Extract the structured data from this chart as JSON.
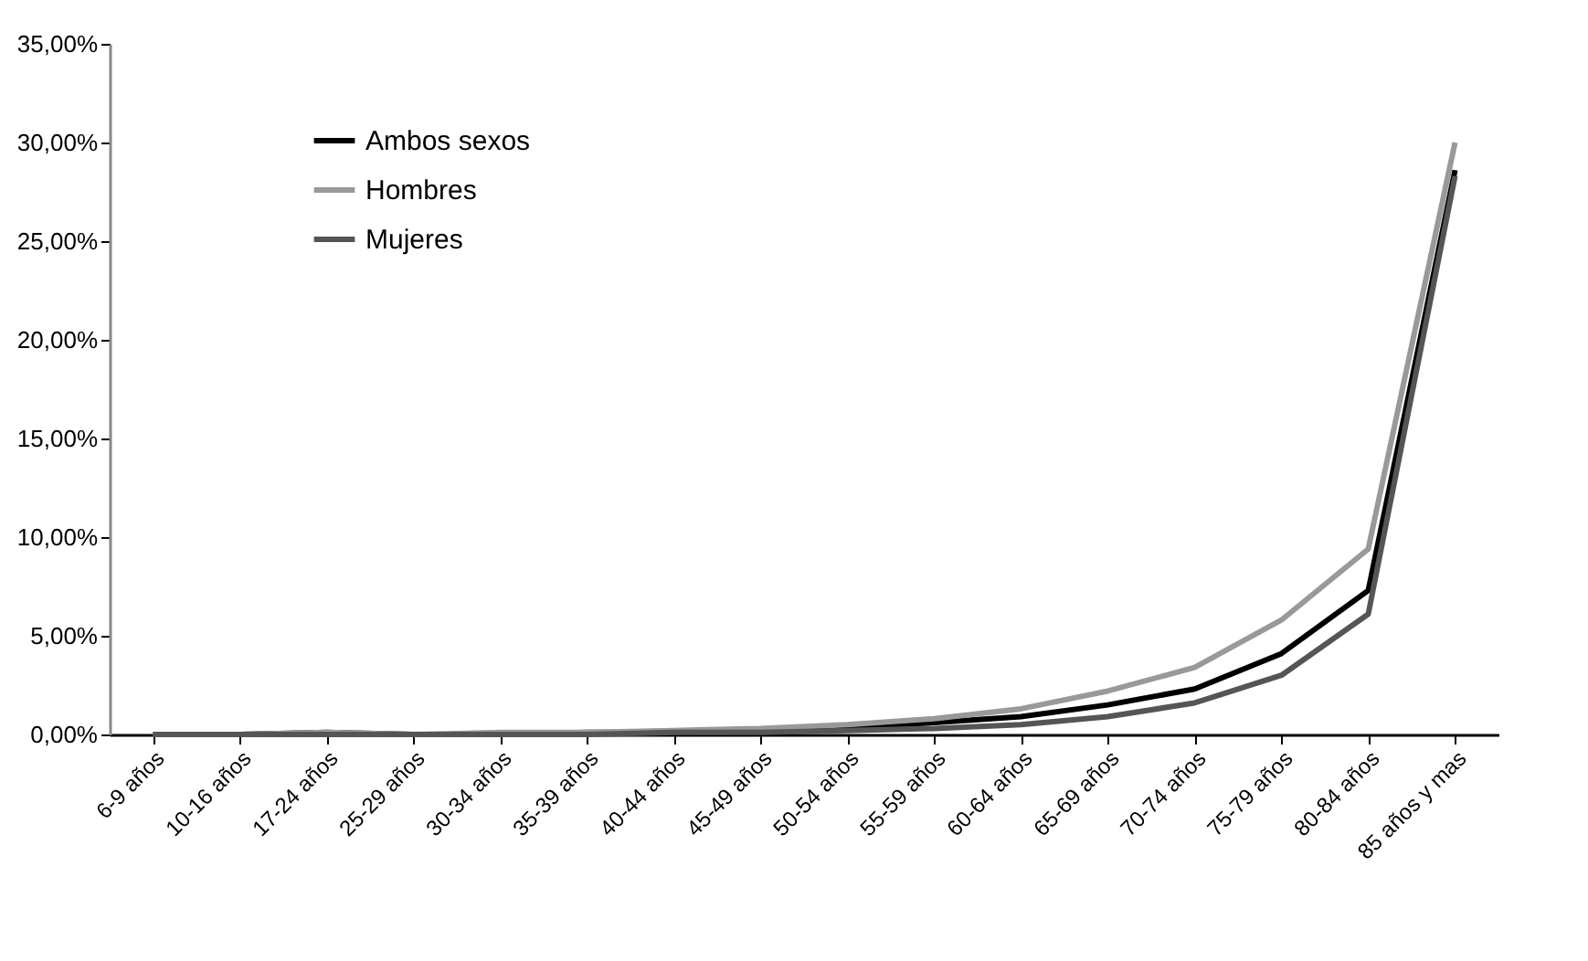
{
  "chart_data": {
    "type": "line",
    "categories": [
      "6-9 años",
      "10-16 años",
      "17-24 años",
      "25-29 años",
      "30-34 años",
      "35-39 años",
      "40-44 años",
      "45-49 años",
      "50-54 años",
      "55-59 años",
      "60-64 años",
      "65-69 años",
      "70-74 años",
      "75-79 años",
      "80-84 años",
      "85 años y mas"
    ],
    "series": [
      {
        "name": "Ambos sexos",
        "color": "#000000",
        "values": [
          0.0,
          0.0,
          0.1,
          0.0,
          0.0,
          0.1,
          0.1,
          0.2,
          0.3,
          0.6,
          0.9,
          1.5,
          2.3,
          4.1,
          7.3,
          28.6
        ]
      },
      {
        "name": "Hombres",
        "color": "#999999",
        "values": [
          0.0,
          0.0,
          0.1,
          0.0,
          0.1,
          0.1,
          0.2,
          0.3,
          0.5,
          0.8,
          1.3,
          2.2,
          3.4,
          5.8,
          9.4,
          30.0
        ]
      },
      {
        "name": "Mujeres",
        "color": "#555555",
        "values": [
          0.0,
          0.0,
          0.0,
          0.0,
          0.0,
          0.0,
          0.1,
          0.1,
          0.2,
          0.3,
          0.5,
          0.9,
          1.6,
          3.0,
          6.1,
          28.3
        ]
      }
    ],
    "ylim": [
      0,
      35
    ],
    "yticks": [
      {
        "value": 0,
        "label": "0,00%"
      },
      {
        "value": 5,
        "label": "5,00%"
      },
      {
        "value": 10,
        "label": "10,00%"
      },
      {
        "value": 15,
        "label": "15,00%"
      },
      {
        "value": 20,
        "label": "20,00%"
      },
      {
        "value": 25,
        "label": "25,00%"
      },
      {
        "value": 30,
        "label": "30,00%"
      },
      {
        "value": 35,
        "label": "35,00%"
      }
    ],
    "grid": false,
    "legend": "top left",
    "marker": "none",
    "line_style": "solid"
  }
}
